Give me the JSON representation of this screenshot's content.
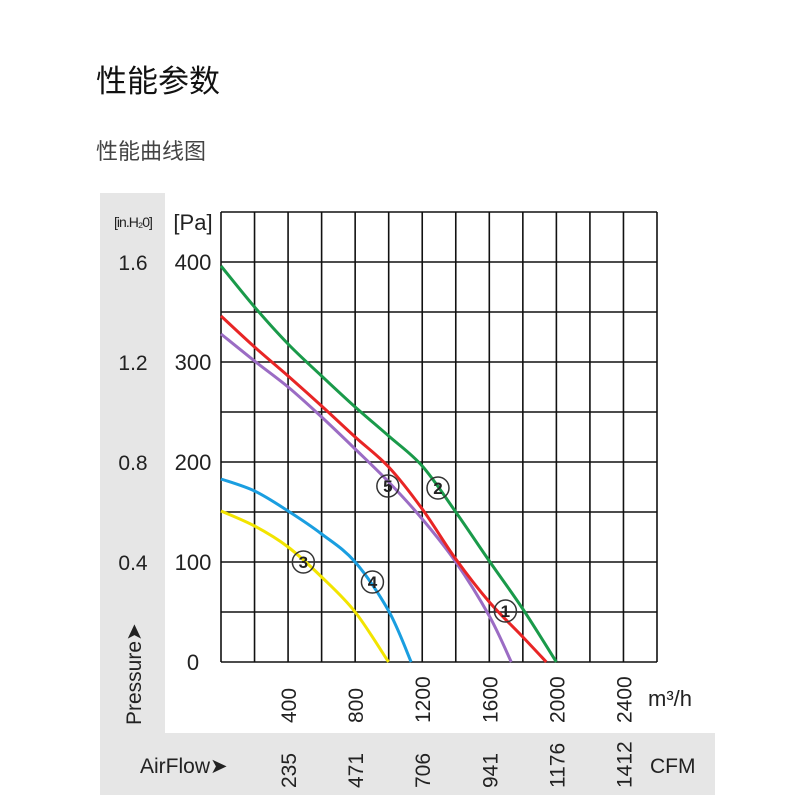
{
  "page": {
    "title": "性能参数",
    "subtitle": "性能曲线图"
  },
  "chart_data": {
    "type": "line",
    "y_unit_left": "[in.H₂0]",
    "y_unit_right": "[Pa]",
    "ylabel": "Pressure➤",
    "xlabel": "AirFlow➤",
    "x_unit": "m³/h",
    "x_unit_alt": "CFM",
    "xlim": [
      0,
      2600
    ],
    "ylim": [
      0,
      450
    ],
    "grid": true,
    "y_ticks_pa": [
      {
        "pa": 400,
        "label": "400",
        "inh2o": "1.6"
      },
      {
        "pa": 300,
        "label": "300",
        "inh2o": "1.2"
      },
      {
        "pa": 200,
        "label": "200",
        "inh2o": "0.8"
      },
      {
        "pa": 100,
        "label": "100",
        "inh2o": "0.4"
      },
      {
        "pa": 0,
        "label": "0",
        "inh2o": ""
      }
    ],
    "x_ticks": [
      {
        "m3h": 400,
        "label": "400",
        "cfm": "235"
      },
      {
        "m3h": 800,
        "label": "800",
        "cfm": "471"
      },
      {
        "m3h": 1200,
        "label": "1200",
        "cfm": "706"
      },
      {
        "m3h": 1600,
        "label": "1600",
        "cfm": "941"
      },
      {
        "m3h": 2000,
        "label": "2000",
        "cfm": "1176"
      },
      {
        "m3h": 2400,
        "label": "2400",
        "cfm": "1412"
      }
    ],
    "series": [
      {
        "name": "1",
        "color": "#9b6cc4",
        "x": [
          0,
          200,
          400,
          600,
          800,
          1000,
          1200,
          1400,
          1600,
          1731
        ],
        "y": [
          328,
          301,
          275,
          245,
          213,
          180,
          143,
          100,
          46,
          0
        ],
        "marker": {
          "x": 1696,
          "y": 51
        }
      },
      {
        "name": "2",
        "color": "#1a9a4a",
        "x": [
          0,
          200,
          400,
          600,
          800,
          1000,
          1200,
          1400,
          1600,
          1800,
          2000
        ],
        "y": [
          396,
          355,
          318,
          286,
          255,
          226,
          196,
          150,
          101,
          53,
          0
        ],
        "marker": {
          "x": 1294,
          "y": 174
        }
      },
      {
        "name": "3",
        "color": "#f2e400",
        "x": [
          0,
          200,
          400,
          600,
          800,
          999
        ],
        "y": [
          151,
          136,
          115,
          85,
          50,
          0
        ],
        "marker": {
          "x": 491,
          "y": 100
        }
      },
      {
        "name": "4",
        "color": "#1a9ee0",
        "x": [
          0,
          200,
          400,
          600,
          800,
          1000,
          1134
        ],
        "y": [
          183,
          171,
          151,
          128,
          100,
          51,
          0
        ],
        "marker": {
          "x": 903,
          "y": 80
        }
      },
      {
        "name": "5",
        "color": "#e82525",
        "x": [
          0,
          200,
          400,
          600,
          800,
          1000,
          1200,
          1400,
          1600,
          1800,
          1940
        ],
        "y": [
          346,
          315,
          286,
          256,
          225,
          195,
          153,
          103,
          60,
          25,
          0
        ],
        "marker": {
          "x": 995,
          "y": 176
        }
      }
    ]
  }
}
